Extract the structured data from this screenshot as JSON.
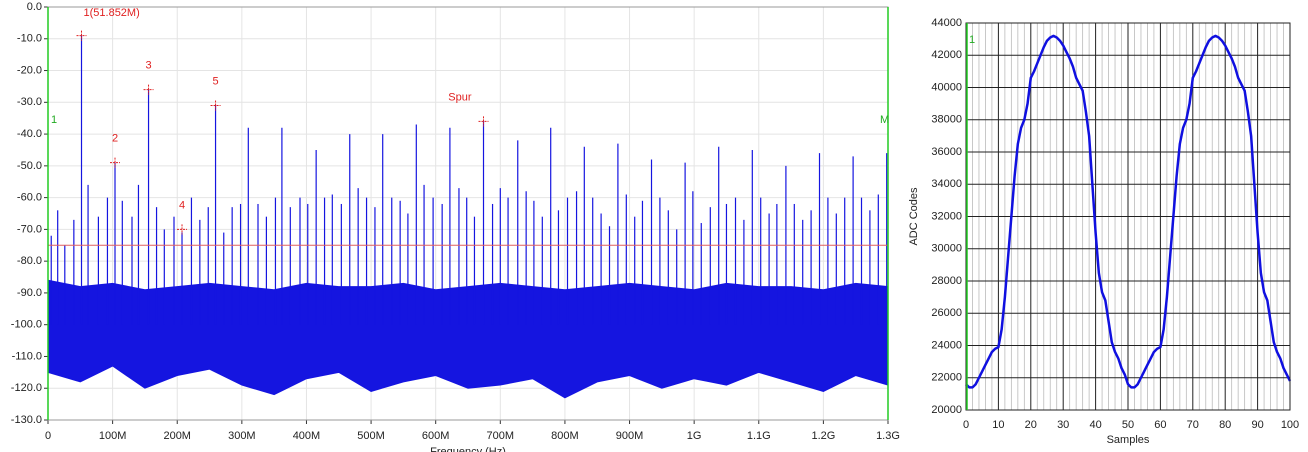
{
  "chart_data": [
    {
      "type": "stem",
      "x_label": "Frequency (Hz)",
      "color": "#1515e0",
      "xlim": [
        0,
        1300000000
      ],
      "xticks": [
        0,
        {
          "value": 100000000,
          "label": "100M"
        },
        {
          "value": 200000000,
          "label": "200M"
        },
        {
          "value": 300000000,
          "label": "300M"
        },
        {
          "value": 400000000,
          "label": "400M"
        },
        {
          "value": 500000000,
          "label": "500M"
        },
        {
          "value": 600000000,
          "label": "600M"
        },
        {
          "value": 700000000,
          "label": "700M"
        },
        {
          "value": 800000000,
          "label": "800M"
        },
        {
          "value": 900000000,
          "label": "900M"
        },
        {
          "value": 1000000000,
          "label": "1G"
        },
        {
          "value": 1100000000,
          "label": "1.1G"
        },
        {
          "value": 1200000000,
          "label": "1.2G"
        },
        {
          "value": 1300000000,
          "label": "1.3G"
        }
      ],
      "ylim": [
        -130,
        0
      ],
      "yticks": [
        {
          "value": 0,
          "label": "0.0"
        },
        {
          "value": -10,
          "label": "-10.0"
        },
        {
          "value": -20,
          "label": "-20.0"
        },
        {
          "value": -30,
          "label": "-30.0"
        },
        {
          "value": -40,
          "label": "-40.0"
        },
        {
          "value": -50,
          "label": "-50.0"
        },
        {
          "value": -60,
          "label": "-60.0"
        },
        {
          "value": -70,
          "label": "-70.0"
        },
        {
          "value": -80,
          "label": "-80.0"
        },
        {
          "value": -90,
          "label": "-90.0"
        },
        {
          "value": -100,
          "label": "-100.0"
        },
        {
          "value": -110,
          "label": "-110.0"
        },
        {
          "value": -120,
          "label": "-120.0"
        },
        {
          "value": -130,
          "label": "-130.0"
        }
      ],
      "grid": true,
      "threshold": -75,
      "cursors": [
        "1",
        "M"
      ],
      "x": [
        5000000,
        15000000,
        26000000,
        40000000,
        51852000,
        62000000,
        78000000,
        92000000,
        103700000,
        115000000,
        130000000,
        140000000,
        155600000,
        168000000,
        180000000,
        195000000,
        207400000,
        222000000,
        235000000,
        248000000,
        259300000,
        272000000,
        285000000,
        298000000,
        310000000,
        325000000,
        338000000,
        352000000,
        362000000,
        375000000,
        390000000,
        402000000,
        415000000,
        428000000,
        440000000,
        454000000,
        467000000,
        480000000,
        493000000,
        506000000,
        518000000,
        532000000,
        545000000,
        557000000,
        570000000,
        582000000,
        596000000,
        610000000,
        622000000,
        636000000,
        648000000,
        660000000,
        674000000,
        688000000,
        700000000,
        712000000,
        727000000,
        740000000,
        752000000,
        765000000,
        778000000,
        790000000,
        804000000,
        818000000,
        830000000,
        843000000,
        856000000,
        869000000,
        882000000,
        895000000,
        908000000,
        920000000,
        934000000,
        947000000,
        960000000,
        973000000,
        986000000,
        998000000,
        1011000000,
        1025000000,
        1038000000,
        1050000000,
        1064000000,
        1077000000,
        1090000000,
        1103000000,
        1116000000,
        1128000000,
        1142000000,
        1155000000,
        1168000000,
        1181000000,
        1194000000,
        1207000000,
        1220000000,
        1233000000,
        1246000000,
        1259000000,
        1272000000,
        1285000000,
        1298000000
      ],
      "values": [
        -72,
        -64,
        -75,
        -67,
        -9,
        -56,
        -66,
        -60,
        -49,
        -61,
        -66,
        -56,
        -26,
        -63,
        -70,
        -66,
        -71,
        -60,
        -67,
        -63,
        -31,
        -71,
        -63,
        -62,
        -38,
        -62,
        -66,
        -60,
        -38,
        -63,
        -60,
        -62,
        -45,
        -60,
        -59,
        -62,
        -40,
        -57,
        -60,
        -63,
        -40,
        -60,
        -61,
        -65,
        -37,
        -56,
        -60,
        -62,
        -38,
        -57,
        -60,
        -66,
        -36,
        -62,
        -57,
        -60,
        -42,
        -58,
        -61,
        -66,
        -38,
        -64,
        -60,
        -58,
        -44,
        -60,
        -65,
        -69,
        -43,
        -59,
        -66,
        -61,
        -48,
        -60,
        -64,
        -70,
        -49,
        -58,
        -68,
        -63,
        -44,
        -62,
        -60,
        -67,
        -45,
        -60,
        -65,
        -62,
        -50,
        -62,
        -67,
        -64,
        -46,
        -60,
        -65,
        -60,
        -47,
        -60,
        -64,
        -59,
        -46
      ],
      "noise": {
        "x": [
          0,
          50000000,
          100000000,
          150000000,
          200000000,
          250000000,
          300000000,
          350000000,
          400000000,
          450000000,
          500000000,
          550000000,
          600000000,
          650000000,
          700000000,
          750000000,
          800000000,
          850000000,
          900000000,
          950000000,
          1000000000,
          1050000000,
          1100000000,
          1150000000,
          1200000000,
          1250000000,
          1300000000
        ],
        "high": [
          -86,
          -88,
          -87,
          -89,
          -88,
          -87,
          -88,
          -89,
          -87,
          -88,
          -88,
          -87,
          -89,
          -88,
          -87,
          -88,
          -89,
          -88,
          -87,
          -88,
          -89,
          -87,
          -88,
          -88,
          -89,
          -87,
          -88
        ],
        "low": [
          -115,
          -118,
          -113,
          -120,
          -116,
          -114,
          -119,
          -122,
          -117,
          -115,
          -121,
          -118,
          -116,
          -120,
          -119,
          -117,
          -123,
          -118,
          -116,
          -120,
          -117,
          -119,
          -115,
          -118,
          -121,
          -116,
          -119
        ]
      },
      "markers": [
        {
          "label": "1(51.852M)",
          "x": 51852000,
          "y": -9
        },
        {
          "label": "2",
          "x": 103700000,
          "y": -49
        },
        {
          "label": "3",
          "x": 155600000,
          "y": -26
        },
        {
          "label": "4",
          "x": 207400000,
          "y": -70
        },
        {
          "label": "5",
          "x": 259300000,
          "y": -31
        },
        {
          "label": "Spur",
          "x": 674000000,
          "y": -36
        }
      ]
    },
    {
      "type": "line",
      "x_label": "Samples",
      "y_label": "ADC Codes",
      "color": "#1010e0",
      "cursor": "1",
      "xlim": [
        0,
        100
      ],
      "xticks": [
        0,
        10,
        20,
        30,
        40,
        50,
        60,
        70,
        80,
        90,
        100
      ],
      "ylim": [
        20000,
        44000
      ],
      "yticks": [
        20000,
        22000,
        24000,
        26000,
        28000,
        30000,
        32000,
        34000,
        36000,
        38000,
        40000,
        42000,
        44000
      ],
      "grid": true,
      "x": [
        0,
        1,
        2,
        3,
        4,
        5,
        6,
        7,
        8,
        9,
        10,
        11,
        12,
        13,
        14,
        15,
        16,
        17,
        18,
        19,
        20,
        21,
        22,
        23,
        24,
        25,
        26,
        27,
        28,
        29,
        30,
        31,
        32,
        33,
        34,
        35,
        36,
        37,
        38,
        39,
        40,
        41,
        42,
        43,
        44,
        45,
        46,
        47,
        48,
        49,
        50,
        51,
        52,
        53,
        54,
        55,
        56,
        57,
        58,
        59,
        60,
        61,
        62,
        63,
        64,
        65,
        66,
        67,
        68,
        69,
        70,
        71,
        72,
        73,
        74,
        75,
        76,
        77,
        78,
        79,
        80,
        81,
        82,
        83,
        84,
        85,
        86,
        87,
        88,
        89,
        90,
        91,
        92,
        93,
        94,
        95,
        96,
        97,
        98,
        99,
        100
      ],
      "values": [
        21600,
        21400,
        21400,
        21600,
        22000,
        22400,
        22800,
        23200,
        23600,
        23800,
        23900,
        25000,
        27000,
        29500,
        32000,
        34500,
        36500,
        37500,
        38000,
        39000,
        40600,
        41000,
        41500,
        42000,
        42500,
        42900,
        43100,
        43200,
        43100,
        42900,
        42600,
        42200,
        41800,
        41300,
        40600,
        40200,
        39800,
        38500,
        37000,
        34000,
        31000,
        28500,
        27300,
        26800,
        25500,
        24200,
        23600,
        23200,
        22600,
        22200,
        21600,
        21400,
        21400,
        21600,
        22000,
        22400,
        22800,
        23200,
        23600,
        23800,
        23900,
        25000,
        27000,
        29500,
        32000,
        34500,
        36500,
        37500,
        38000,
        39000,
        40600,
        41000,
        41500,
        42000,
        42500,
        42900,
        43100,
        43200,
        43100,
        42900,
        42600,
        42200,
        41800,
        41300,
        40600,
        40200,
        39800,
        38500,
        37000,
        34000,
        31000,
        28500,
        27300,
        26800,
        25500,
        24200,
        23600,
        23200,
        22600,
        22200,
        21800
      ]
    }
  ]
}
